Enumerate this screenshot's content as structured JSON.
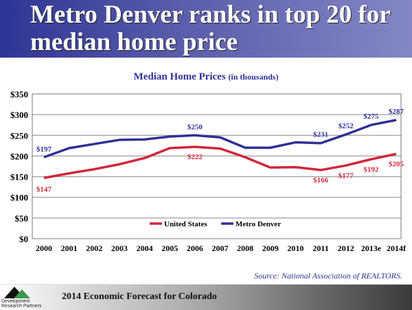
{
  "slide": {
    "title": "Metro Denver ranks in top 20 for median home price",
    "source": "Source:  National Association of REALTORS.",
    "footer": "2014 Economic Forecast for Colorado",
    "logo_text": "Development Research Partners"
  },
  "chart_data": {
    "type": "line",
    "title": "Median Home Prices",
    "title_suffix": "(in thousands)",
    "xlabel": "",
    "ylabel": "",
    "categories": [
      "2000",
      "2001",
      "2002",
      "2003",
      "2004",
      "2005",
      "2006",
      "2007",
      "2008",
      "2009",
      "2010",
      "2011",
      "2012",
      "2013e",
      "2014f"
    ],
    "ylim": [
      0,
      350
    ],
    "yticks": [
      0,
      50,
      100,
      150,
      200,
      250,
      300,
      350
    ],
    "ytick_labels": [
      "$0",
      "$50",
      "$100",
      "$150",
      "$200",
      "$250",
      "$300",
      "$350"
    ],
    "grid": true,
    "legend_position": "bottom-center",
    "series": [
      {
        "name": "United States",
        "color": "#d0263a",
        "values": [
          147,
          158,
          168,
          180,
          195,
          219,
          222,
          218,
          197,
          172,
          173,
          166,
          177,
          192,
          205
        ],
        "labels": {
          "0": "$147",
          "6": "$222",
          "11": "$166",
          "12": "$177",
          "13": "$192",
          "14": "$205"
        }
      },
      {
        "name": "Metro Denver",
        "color": "#2e3196",
        "values": [
          197,
          219,
          229,
          239,
          240,
          247,
          250,
          245,
          220,
          220,
          233,
          231,
          252,
          275,
          287
        ],
        "labels": {
          "0": "$197",
          "6": "$250",
          "11": "$231",
          "12": "$252",
          "13": "$275",
          "14": "$287"
        }
      }
    ]
  }
}
